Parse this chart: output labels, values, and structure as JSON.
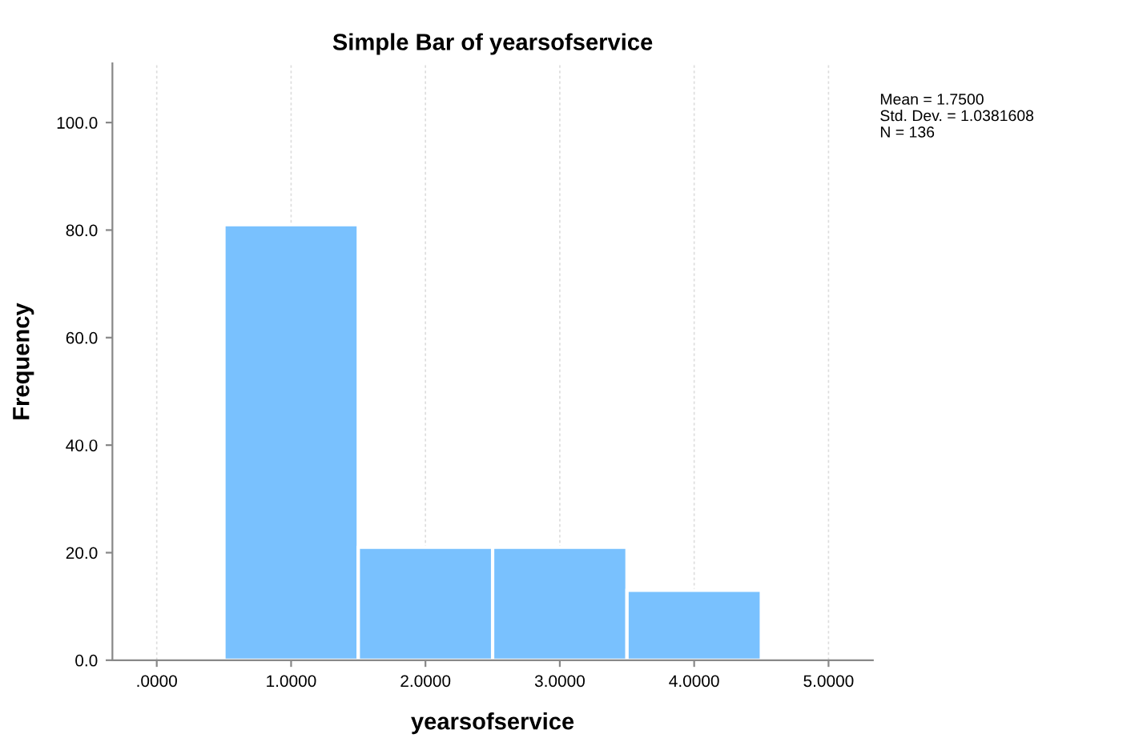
{
  "chart_data": {
    "type": "histogram",
    "title": "Simple Bar of yearsofservice",
    "xlabel": "yearsofservice",
    "ylabel": "Frequency",
    "bins": [
      0.5,
      1.5,
      2.5,
      3.5,
      4.5
    ],
    "values": [
      81,
      21,
      21,
      13
    ],
    "color": "#79c1fe",
    "xlim": [
      -0.33,
      5.33
    ],
    "ylim": [
      0,
      111
    ],
    "xticks": [
      {
        "value": 0,
        "label": ".0000"
      },
      {
        "value": 1,
        "label": "1.0000"
      },
      {
        "value": 2,
        "label": "2.0000"
      },
      {
        "value": 3,
        "label": "3.0000"
      },
      {
        "value": 4,
        "label": "4.0000"
      },
      {
        "value": 5,
        "label": "5.0000"
      }
    ],
    "yticks": [
      {
        "value": 0,
        "label": "0.0"
      },
      {
        "value": 20,
        "label": "20.0"
      },
      {
        "value": 40,
        "label": "40.0"
      },
      {
        "value": 60,
        "label": "60.0"
      },
      {
        "value": 80,
        "label": "80.0"
      },
      {
        "value": 100,
        "label": "100.0"
      }
    ],
    "grid": "x",
    "annotations": [
      "Mean = 1.7500",
      "Std. Dev. = 1.0381608",
      "N = 136"
    ]
  }
}
